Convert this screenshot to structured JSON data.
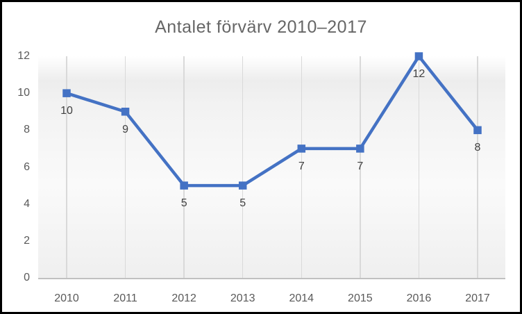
{
  "chart_data": {
    "type": "line",
    "title": "Antalet förvärv 2010–2017",
    "categories": [
      "2010",
      "2011",
      "2012",
      "2013",
      "2014",
      "2015",
      "2016",
      "2017"
    ],
    "values": [
      10,
      9,
      5,
      5,
      7,
      7,
      12,
      8
    ],
    "data_labels_shown": true,
    "xlabel": "",
    "ylabel": "",
    "ylim": [
      0,
      12
    ],
    "yticks": [
      0,
      2,
      4,
      6,
      8,
      10,
      12
    ],
    "gridlines": "vertical-only",
    "legend": "none",
    "marker_shape": "square",
    "colors": {
      "line": "#4472C4",
      "marker": "#4472C4",
      "title_text": "#666666",
      "axis_text": "#595959",
      "data_label_text": "#404040",
      "gridline": "#D9D9D9",
      "axis_line": "#C0C0C0",
      "plot_fill_top": "#FFFFFF",
      "plot_fill_upper": "#EDEDED",
      "plot_fill_mid": "#FAFAFA",
      "plot_fill_bottom": "#EFEFEF",
      "frame_border": "#000000",
      "chart_background": "#FFFFFF"
    }
  }
}
